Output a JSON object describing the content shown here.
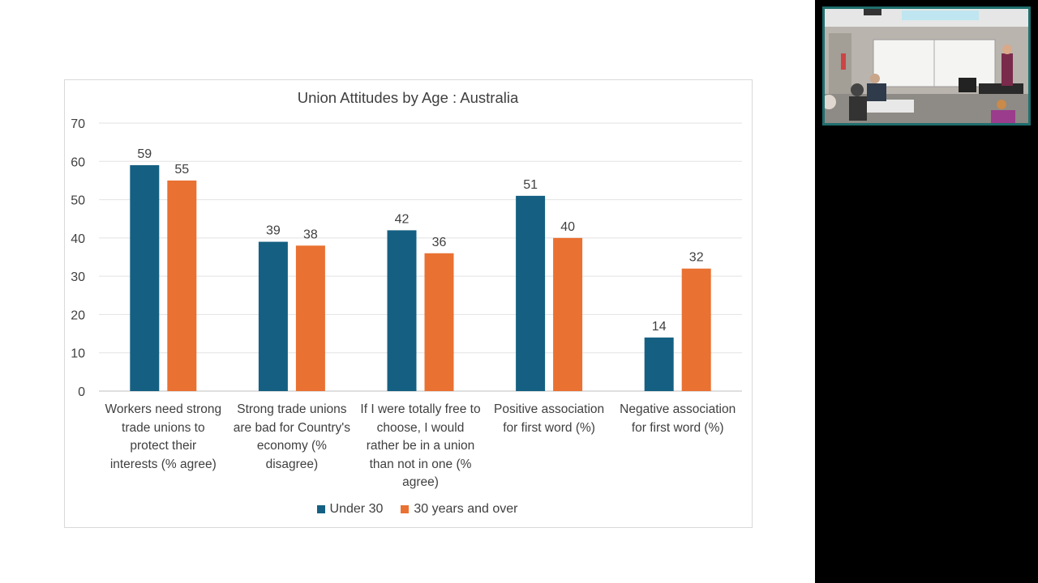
{
  "chart_data": {
    "type": "bar",
    "title": "Union Attitudes by Age : Australia",
    "xlabel": "",
    "ylabel": "",
    "ylim": [
      0,
      70
    ],
    "yticks": [
      0,
      10,
      20,
      30,
      40,
      50,
      60,
      70
    ],
    "grid": true,
    "legend_position": "bottom",
    "categories": [
      "Workers need strong trade unions to protect their interests (% agree)",
      "Strong trade unions are bad for Country's economy (% disagree)",
      "If I were totally free to choose, I would rather be in a union than not in one (% agree)",
      "Positive association for first word (%)",
      "Negative association for first word (%)"
    ],
    "series": [
      {
        "name": "Under 30",
        "color": "#156082",
        "values": [
          59,
          39,
          42,
          51,
          14
        ]
      },
      {
        "name": "30 years and over",
        "color": "#E97132",
        "values": [
          55,
          38,
          36,
          40,
          32
        ]
      }
    ]
  },
  "category_lines": [
    [
      "Workers need strong",
      "trade unions to",
      "protect their",
      "interests (% agree)"
    ],
    [
      "Strong trade unions",
      "are bad for Country's",
      "economy (%",
      "disagree)"
    ],
    [
      "If I were totally free to",
      "choose, I would",
      "rather be in a union",
      "than not in one (%",
      "agree)"
    ],
    [
      "Positive association",
      "for first word (%)"
    ],
    [
      "Negative association",
      "for first word (%)"
    ]
  ]
}
